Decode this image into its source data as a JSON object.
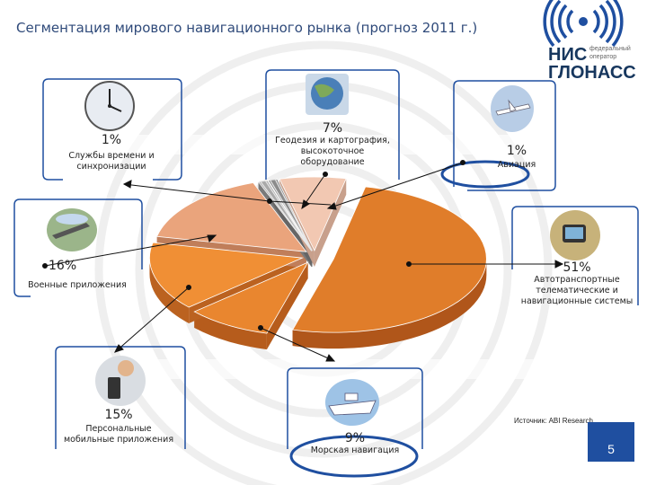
{
  "title": "Сегментация мирового навигационного рынка (прогноз 2011 г.)",
  "logo": {
    "line1": "НИС",
    "line2": "ГЛОНАСС",
    "small1": "федеральный",
    "small2": "оператор",
    "icon": "glonass-logo-icon"
  },
  "source": "Источник: ABI Research",
  "page_number": "5",
  "colors": {
    "title": "#2f4a7a",
    "orange": "#e07d2a",
    "light_orange": "#eab08a",
    "peach": "#f4cdb8",
    "gray": "#9a9a9a",
    "frame": "#1f4fa0"
  },
  "segments": [
    {
      "pct": "1%",
      "label": "Службы времени и синхронизации",
      "icon": "clock-icon"
    },
    {
      "pct": "7%",
      "label": "Геодезия и картография, высокоточное оборудование",
      "icon": "globe-icon"
    },
    {
      "pct": "1%",
      "label": "Авиация",
      "icon": "airplane-icon"
    },
    {
      "pct": "16%",
      "label": "Военные приложения",
      "icon": "military-icon"
    },
    {
      "pct": "51%",
      "label": "Автотранспортные телематические и навигационные системы",
      "icon": "car-navigation-icon"
    },
    {
      "pct": "15%",
      "label": "Персональные мобильные приложения",
      "icon": "phone-icon"
    },
    {
      "pct": "9%",
      "label": "Морская навигация",
      "icon": "ship-icon"
    }
  ],
  "chart_data": {
    "type": "pie",
    "title": "Сегментация мирового навигационного рынка (прогноз 2011 г.)",
    "categories": [
      "Автотранспортные телематические и навигационные системы",
      "Морская навигация",
      "Персональные мобильные приложения",
      "Военные приложения",
      "Службы времени и синхронизации",
      "Авиация",
      "Геодезия и картография, высокоточное оборудование"
    ],
    "values": [
      51,
      9,
      15,
      16,
      1,
      1,
      7
    ],
    "unit": "%"
  }
}
